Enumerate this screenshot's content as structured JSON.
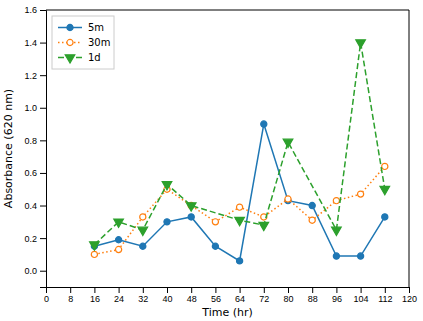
{
  "chart_data": {
    "type": "line",
    "xlabel": "Time (hr)",
    "ylabel": "Absorbance (620 nm)",
    "xlim": [
      0,
      120
    ],
    "ylim": [
      -0.1,
      1.6
    ],
    "xticks": [
      0,
      8,
      16,
      24,
      32,
      40,
      48,
      56,
      64,
      72,
      80,
      88,
      96,
      104,
      112,
      120
    ],
    "yticks": [
      {
        "value": 0.0,
        "label": "0.0"
      },
      0.2,
      0.4,
      0.6,
      0.8,
      {
        "value": 1.0,
        "label": "1.0"
      },
      1.2,
      1.4,
      1.6
    ],
    "grid": false,
    "legend": "upper-left",
    "series": [
      {
        "name": "5m",
        "marker": "circle",
        "line_style": "solid",
        "x": [
          16,
          24,
          32,
          40,
          48,
          56,
          64,
          72,
          80,
          88,
          96,
          104,
          112
        ],
        "values": [
          0.15,
          0.19,
          0.15,
          0.3,
          0.33,
          0.15,
          0.06,
          0.9,
          0.43,
          0.4,
          0.09,
          0.09,
          0.33
        ]
      },
      {
        "name": "30m",
        "marker": "open-circle",
        "line_style": "dotted",
        "x": [
          16,
          24,
          32,
          40,
          48,
          56,
          64,
          72,
          80,
          88,
          96,
          104,
          112
        ],
        "values": [
          0.1,
          0.13,
          0.33,
          0.5,
          0.4,
          0.3,
          0.39,
          0.33,
          0.44,
          0.31,
          0.43,
          0.47,
          0.64
        ]
      },
      {
        "name": "1d",
        "marker": "triangle-down",
        "line_style": "dashed",
        "x": [
          16,
          24,
          32,
          40,
          48,
          64,
          72,
          80,
          96,
          104,
          112
        ],
        "values": [
          0.16,
          0.3,
          0.25,
          0.53,
          0.4,
          0.31,
          0.28,
          0.79,
          0.25,
          1.4,
          0.5
        ]
      }
    ]
  }
}
